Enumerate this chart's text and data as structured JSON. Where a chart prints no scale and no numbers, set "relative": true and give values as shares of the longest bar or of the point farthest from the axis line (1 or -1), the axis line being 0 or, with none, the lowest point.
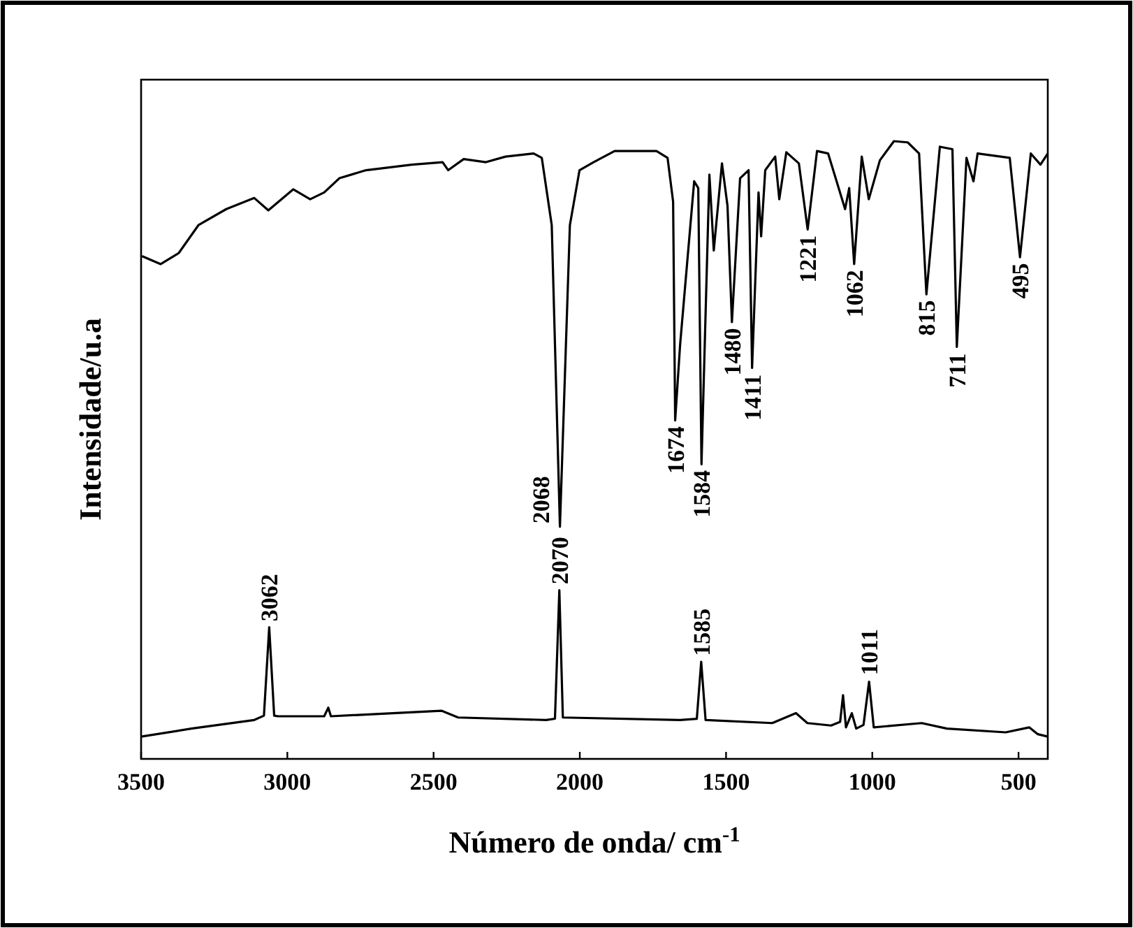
{
  "chart_data": {
    "type": "line",
    "relative": true,
    "xlabel": "Número de onda/ cm$^{-1}$",
    "ylabel": "Intensidade/u.a",
    "xlim": [
      3500,
      400
    ],
    "xticks": [
      3500,
      3000,
      2500,
      2000,
      1500,
      1000,
      500
    ],
    "grid": false,
    "series": [
      {
        "color": "#000000",
        "x": [
          3497,
          3433,
          3371,
          3304,
          3209,
          3113,
          3065,
          2980,
          2922,
          2874,
          2822,
          2731,
          2574,
          2469,
          2450,
          2397,
          2321,
          2254,
          2158,
          2130,
          2096,
          2068,
          2034,
          2001,
          1953,
          1881,
          1738,
          1700,
          1681,
          1674,
          1657,
          1609,
          1595,
          1584,
          1557,
          1542,
          1514,
          1495,
          1480,
          1452,
          1423,
          1411,
          1389,
          1380,
          1366,
          1332,
          1318,
          1294,
          1251,
          1221,
          1189,
          1151,
          1093,
          1079,
          1062,
          1036,
          1012,
          974,
          926,
          879,
          840,
          815,
          769,
          726,
          711,
          678,
          654,
          640,
          530,
          495,
          458,
          425,
          400
        ],
        "values": [
          0.814,
          0.801,
          0.819,
          0.864,
          0.89,
          0.908,
          0.888,
          0.922,
          0.906,
          0.917,
          0.94,
          0.953,
          0.962,
          0.966,
          0.953,
          0.971,
          0.966,
          0.975,
          0.98,
          0.973,
          0.864,
          0.376,
          0.864,
          0.953,
          0.966,
          0.984,
          0.984,
          0.973,
          0.902,
          0.548,
          0.671,
          0.935,
          0.924,
          0.477,
          0.946,
          0.823,
          0.964,
          0.895,
          0.707,
          0.94,
          0.953,
          0.633,
          0.917,
          0.846,
          0.953,
          0.975,
          0.906,
          0.982,
          0.964,
          0.857,
          0.984,
          0.98,
          0.89,
          0.924,
          0.801,
          0.975,
          0.906,
          0.969,
          1,
          0.998,
          0.98,
          0.752,
          0.991,
          0.987,
          0.667,
          0.973,
          0.935,
          0.98,
          0.973,
          0.812,
          0.98,
          0.962,
          0.98
        ]
      },
      {
        "color": "#000000",
        "x": [
          3500,
          3328,
          3113,
          3080,
          3062,
          3045,
          3032,
          2874,
          2860,
          2851,
          2473,
          2416,
          2115,
          2085,
          2070,
          2058,
          1657,
          1600,
          1585,
          1570,
          1342,
          1261,
          1222,
          1141,
          1110,
          1100,
          1090,
          1070,
          1055,
          1030,
          1011,
          995,
          831,
          745,
          544,
          463,
          434,
          400
        ],
        "values": [
          0.036,
          0.049,
          0.063,
          0.07,
          0.213,
          0.07,
          0.069,
          0.069,
          0.083,
          0.069,
          0.078,
          0.067,
          0.063,
          0.065,
          0.273,
          0.067,
          0.063,
          0.065,
          0.157,
          0.063,
          0.058,
          0.074,
          0.058,
          0.054,
          0.06,
          0.103,
          0.051,
          0.074,
          0.049,
          0.055,
          0.125,
          0.051,
          0.058,
          0.049,
          0.043,
          0.051,
          0.04,
          0.036
        ]
      }
    ],
    "annotations": [
      {
        "text": "3062",
        "x": 3062,
        "y": 0.213
      },
      {
        "text": "2070",
        "x": 2070,
        "y": 0.273
      },
      {
        "text": "1585",
        "x": 1585,
        "y": 0.157
      },
      {
        "text": "1011",
        "x": 1011,
        "y": 0.125
      },
      {
        "text": "2068",
        "x": 2068,
        "y": 0.376
      },
      {
        "text": "1674",
        "x": 1674,
        "y": 0.548
      },
      {
        "text": "1584",
        "x": 1584,
        "y": 0.477
      },
      {
        "text": "1480",
        "x": 1480,
        "y": 0.707
      },
      {
        "text": "1411",
        "x": 1411,
        "y": 0.633
      },
      {
        "text": "1221",
        "x": 1221,
        "y": 0.857
      },
      {
        "text": "1062",
        "x": 1062,
        "y": 0.801
      },
      {
        "text": "815",
        "x": 815,
        "y": 0.752
      },
      {
        "text": "711",
        "x": 711,
        "y": 0.667
      },
      {
        "text": "495",
        "x": 495,
        "y": 0.812
      }
    ]
  }
}
